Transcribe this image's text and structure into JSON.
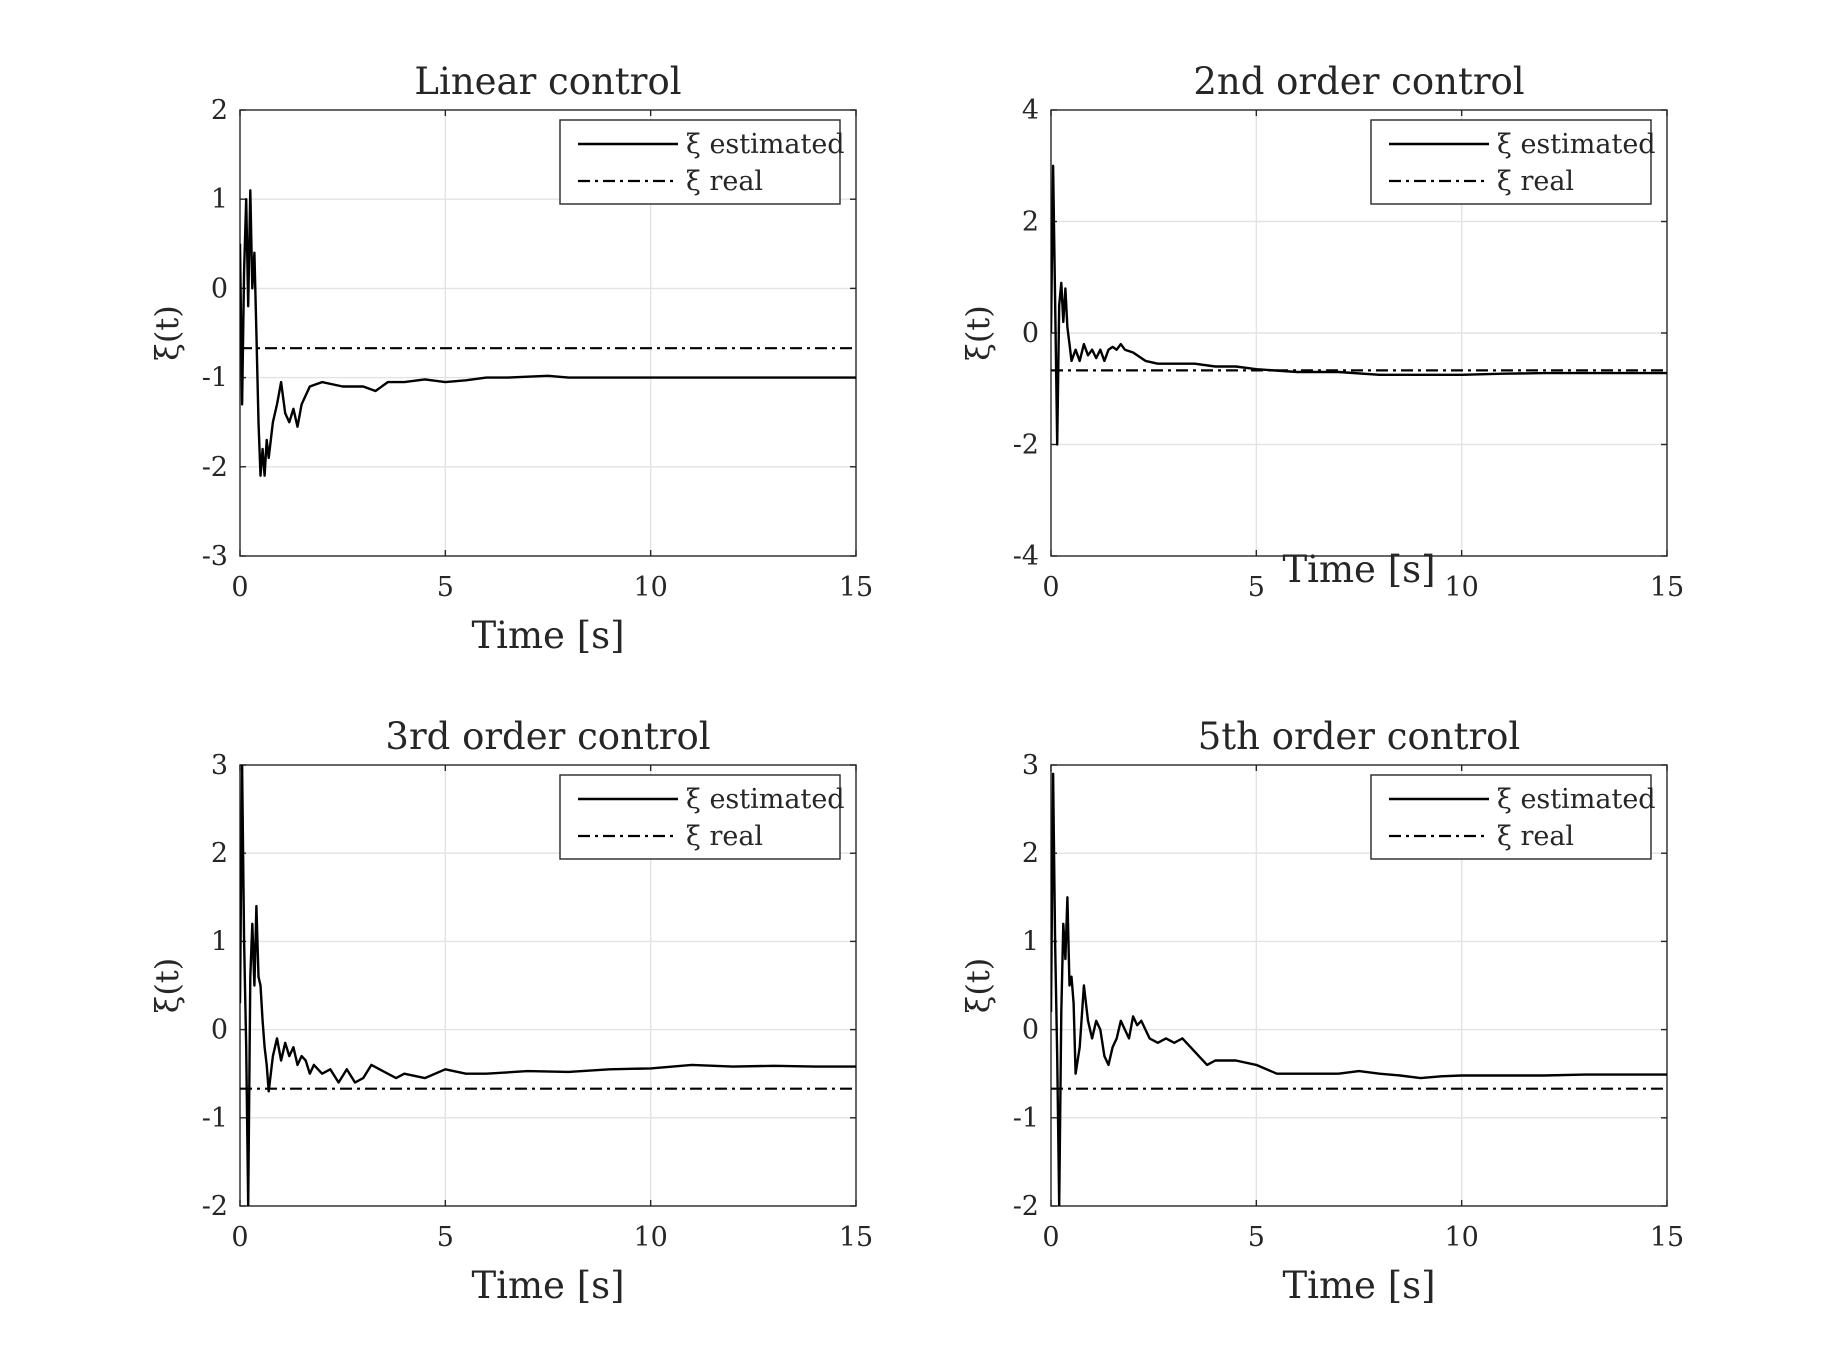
{
  "chart_data": [
    {
      "type": "line",
      "title": "Linear control",
      "xlabel": "Time [s]",
      "ylabel": "ξ(t)",
      "xlim": [
        0,
        15
      ],
      "ylim": [
        -3,
        2
      ],
      "xticks": [
        0,
        5,
        10,
        15
      ],
      "yticks": [
        -3,
        -2,
        -1,
        0,
        1,
        2
      ],
      "grid": true,
      "legend": "top-right",
      "series": [
        {
          "name": "ξ estimated",
          "style": "solid",
          "x": [
            0,
            0.05,
            0.1,
            0.15,
            0.2,
            0.25,
            0.3,
            0.35,
            0.4,
            0.45,
            0.5,
            0.55,
            0.6,
            0.65,
            0.7,
            0.8,
            0.9,
            1.0,
            1.1,
            1.2,
            1.3,
            1.4,
            1.5,
            1.7,
            2.0,
            2.5,
            3.0,
            3.3,
            3.6,
            4.0,
            4.5,
            5.0,
            5.5,
            6.0,
            6.5,
            7.0,
            7.5,
            8.0,
            9.0,
            10.0,
            11.0,
            12.0,
            13.0,
            14.0,
            15.0
          ],
          "values": [
            0.5,
            -1.3,
            0.2,
            1.0,
            -0.2,
            1.1,
            0.0,
            0.4,
            -0.5,
            -1.5,
            -2.1,
            -1.8,
            -2.1,
            -1.7,
            -1.9,
            -1.5,
            -1.3,
            -1.05,
            -1.4,
            -1.5,
            -1.35,
            -1.55,
            -1.3,
            -1.1,
            -1.05,
            -1.1,
            -1.1,
            -1.15,
            -1.05,
            -1.05,
            -1.02,
            -1.05,
            -1.03,
            -1.0,
            -1.0,
            -0.99,
            -0.98,
            -1.0,
            -1.0,
            -1.0,
            -1.0,
            -1.0,
            -1.0,
            -1.0,
            -1.0
          ]
        },
        {
          "name": "ξ real",
          "style": "dashdot",
          "x": [
            0,
            15
          ],
          "values": [
            -0.67,
            -0.67
          ]
        }
      ]
    },
    {
      "type": "line",
      "title": "2nd order control",
      "xlabel": "Time [s]",
      "ylabel": "ξ(t)",
      "xlim": [
        0,
        15
      ],
      "ylim": [
        -4,
        4
      ],
      "xticks": [
        0,
        5,
        10,
        15
      ],
      "yticks": [
        -4,
        -2,
        0,
        2,
        4
      ],
      "grid": true,
      "legend": "top-right",
      "series": [
        {
          "name": "ξ estimated",
          "style": "solid",
          "x": [
            0,
            0.05,
            0.1,
            0.15,
            0.2,
            0.25,
            0.3,
            0.35,
            0.4,
            0.45,
            0.5,
            0.6,
            0.7,
            0.8,
            0.9,
            1.0,
            1.1,
            1.2,
            1.3,
            1.4,
            1.5,
            1.6,
            1.7,
            1.8,
            2.0,
            2.3,
            2.6,
            3.0,
            3.5,
            4.0,
            4.5,
            5.0,
            6.0,
            7.0,
            8.0,
            9.0,
            10.0,
            11.0,
            12.0,
            13.0,
            14.0,
            15.0
          ],
          "values": [
            0.0,
            3.0,
            0.6,
            -2.0,
            0.5,
            0.9,
            0.2,
            0.8,
            0.1,
            -0.2,
            -0.5,
            -0.3,
            -0.5,
            -0.2,
            -0.4,
            -0.3,
            -0.45,
            -0.3,
            -0.5,
            -0.3,
            -0.25,
            -0.3,
            -0.2,
            -0.3,
            -0.35,
            -0.5,
            -0.55,
            -0.55,
            -0.55,
            -0.6,
            -0.6,
            -0.65,
            -0.7,
            -0.7,
            -0.75,
            -0.75,
            -0.75,
            -0.73,
            -0.72,
            -0.72,
            -0.72,
            -0.72
          ]
        },
        {
          "name": "ξ real",
          "style": "dashdot",
          "x": [
            0,
            15
          ],
          "values": [
            -0.67,
            -0.67
          ]
        }
      ]
    },
    {
      "type": "line",
      "title": "3rd order control",
      "xlabel": "Time [s]",
      "ylabel": "ξ(t)",
      "xlim": [
        0,
        15
      ],
      "ylim": [
        -2,
        3
      ],
      "xticks": [
        0,
        5,
        10,
        15
      ],
      "yticks": [
        -2,
        -1,
        0,
        1,
        2,
        3
      ],
      "grid": true,
      "legend": "top-right",
      "series": [
        {
          "name": "ξ estimated",
          "style": "solid",
          "x": [
            0,
            0.05,
            0.1,
            0.15,
            0.2,
            0.25,
            0.3,
            0.35,
            0.4,
            0.45,
            0.5,
            0.55,
            0.6,
            0.65,
            0.7,
            0.8,
            0.9,
            1.0,
            1.1,
            1.2,
            1.3,
            1.4,
            1.5,
            1.6,
            1.7,
            1.8,
            2.0,
            2.2,
            2.4,
            2.6,
            2.8,
            3.0,
            3.2,
            3.4,
            3.6,
            3.8,
            4.0,
            4.5,
            5.0,
            5.5,
            6.0,
            7.0,
            8.0,
            9.0,
            10.0,
            11.0,
            12.0,
            13.0,
            14.0,
            15.0
          ],
          "values": [
            0.3,
            3.0,
            1.0,
            -0.2,
            -2.0,
            0.6,
            1.2,
            0.5,
            1.4,
            0.6,
            0.5,
            0.1,
            -0.2,
            -0.4,
            -0.7,
            -0.3,
            -0.1,
            -0.35,
            -0.15,
            -0.3,
            -0.2,
            -0.4,
            -0.3,
            -0.35,
            -0.5,
            -0.4,
            -0.5,
            -0.45,
            -0.6,
            -0.45,
            -0.6,
            -0.55,
            -0.4,
            -0.45,
            -0.5,
            -0.55,
            -0.5,
            -0.55,
            -0.45,
            -0.5,
            -0.5,
            -0.47,
            -0.48,
            -0.45,
            -0.44,
            -0.4,
            -0.42,
            -0.41,
            -0.42,
            -0.42
          ]
        },
        {
          "name": "ξ real",
          "style": "dashdot",
          "x": [
            0,
            15
          ],
          "values": [
            -0.67,
            -0.67
          ]
        }
      ]
    },
    {
      "type": "line",
      "title": "5th order control",
      "xlabel": "Time [s]",
      "ylabel": "ξ(t)",
      "xlim": [
        0,
        15
      ],
      "ylim": [
        -2,
        3
      ],
      "xticks": [
        0,
        5,
        10,
        15
      ],
      "yticks": [
        -2,
        -1,
        0,
        1,
        2,
        3
      ],
      "grid": true,
      "legend": "top-right",
      "series": [
        {
          "name": "ξ estimated",
          "style": "solid",
          "x": [
            0,
            0.05,
            0.1,
            0.15,
            0.2,
            0.25,
            0.3,
            0.35,
            0.4,
            0.45,
            0.5,
            0.55,
            0.6,
            0.7,
            0.8,
            0.9,
            1.0,
            1.1,
            1.2,
            1.3,
            1.4,
            1.5,
            1.6,
            1.7,
            1.8,
            1.9,
            2.0,
            2.1,
            2.2,
            2.4,
            2.6,
            2.8,
            3.0,
            3.2,
            3.4,
            3.6,
            3.8,
            4.0,
            4.5,
            5.0,
            5.5,
            6.0,
            6.5,
            7.0,
            7.5,
            8.0,
            8.5,
            9.0,
            9.5,
            10.0,
            11.0,
            12.0,
            13.0,
            14.0,
            15.0
          ],
          "values": [
            0.2,
            2.9,
            1.0,
            -0.3,
            -2.0,
            0.2,
            1.2,
            0.8,
            1.5,
            0.5,
            0.6,
            0.3,
            -0.5,
            -0.2,
            0.5,
            0.1,
            -0.1,
            0.1,
            0.0,
            -0.3,
            -0.4,
            -0.2,
            -0.1,
            0.1,
            0.0,
            -0.1,
            0.15,
            0.05,
            0.1,
            -0.1,
            -0.15,
            -0.1,
            -0.15,
            -0.1,
            -0.2,
            -0.3,
            -0.4,
            -0.35,
            -0.35,
            -0.4,
            -0.5,
            -0.5,
            -0.5,
            -0.5,
            -0.47,
            -0.5,
            -0.52,
            -0.55,
            -0.53,
            -0.52,
            -0.52,
            -0.52,
            -0.51,
            -0.51,
            -0.51
          ]
        },
        {
          "name": "ξ real",
          "style": "dashdot",
          "x": [
            0,
            15
          ],
          "values": [
            -0.67,
            -0.67
          ]
        }
      ]
    }
  ]
}
